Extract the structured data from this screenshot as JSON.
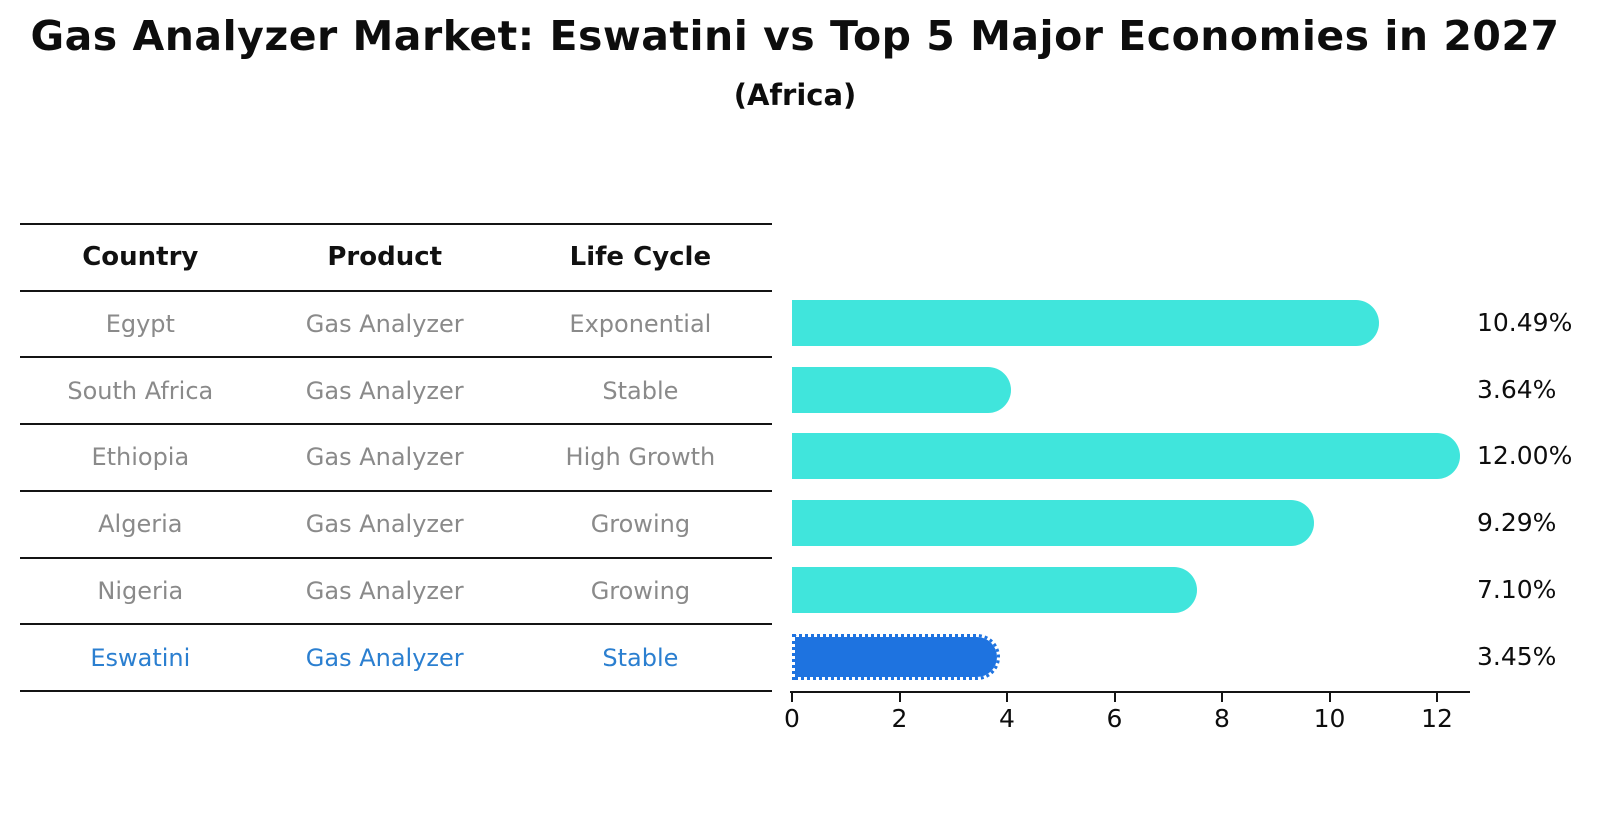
{
  "title": "Gas Analyzer Market: Eswatini vs Top 5 Major Economies in 2027",
  "subtitle": "(Africa)",
  "table": {
    "headers": [
      "Country",
      "Product",
      "Life Cycle"
    ],
    "rows": [
      {
        "country": "Egypt",
        "product": "Gas Analyzer",
        "life_cycle": "Exponential",
        "highlight": false
      },
      {
        "country": "South Africa",
        "product": "Gas Analyzer",
        "life_cycle": "Stable",
        "highlight": false
      },
      {
        "country": "Ethiopia",
        "product": "Gas Analyzer",
        "life_cycle": "High Growth",
        "highlight": false
      },
      {
        "country": "Algeria",
        "product": "Gas Analyzer",
        "life_cycle": "Growing",
        "highlight": false
      },
      {
        "country": "Nigeria",
        "product": "Gas Analyzer",
        "life_cycle": "Growing",
        "highlight": false
      },
      {
        "country": "Eswatini",
        "product": "Gas Analyzer",
        "life_cycle": "Stable",
        "highlight": true
      }
    ]
  },
  "chart_data": {
    "type": "bar",
    "orientation": "horizontal",
    "title": "Gas Analyzer Market: Eswatini vs Top 5 Major Economies in 2027",
    "subtitle": "(Africa)",
    "categories": [
      "Egypt",
      "South Africa",
      "Ethiopia",
      "Algeria",
      "Nigeria",
      "Eswatini"
    ],
    "values": [
      10.49,
      3.64,
      12.0,
      9.29,
      7.1,
      3.45
    ],
    "value_labels": [
      "10.49%",
      "3.64%",
      "12.00%",
      "9.29%",
      "7.10%",
      "3.45%"
    ],
    "unit": "%",
    "x_ticks": [
      0,
      2,
      4,
      6,
      8,
      10,
      12
    ],
    "x_tick_labels": [
      "0",
      "2",
      "4",
      "6",
      "8",
      "10",
      "12"
    ],
    "xlim": [
      0,
      12.65
    ],
    "grid": false,
    "legend": false,
    "highlight_index": 5,
    "highlight_category": "Eswatini"
  },
  "colors": {
    "background": "#FFFFFF",
    "bar": "#40E5DC",
    "highlight_bar": "#1E73E0",
    "highlight_text": "#2B7FD0",
    "row_text": "#8A8A8A",
    "header_text": "#111111",
    "axis": "#141414"
  }
}
